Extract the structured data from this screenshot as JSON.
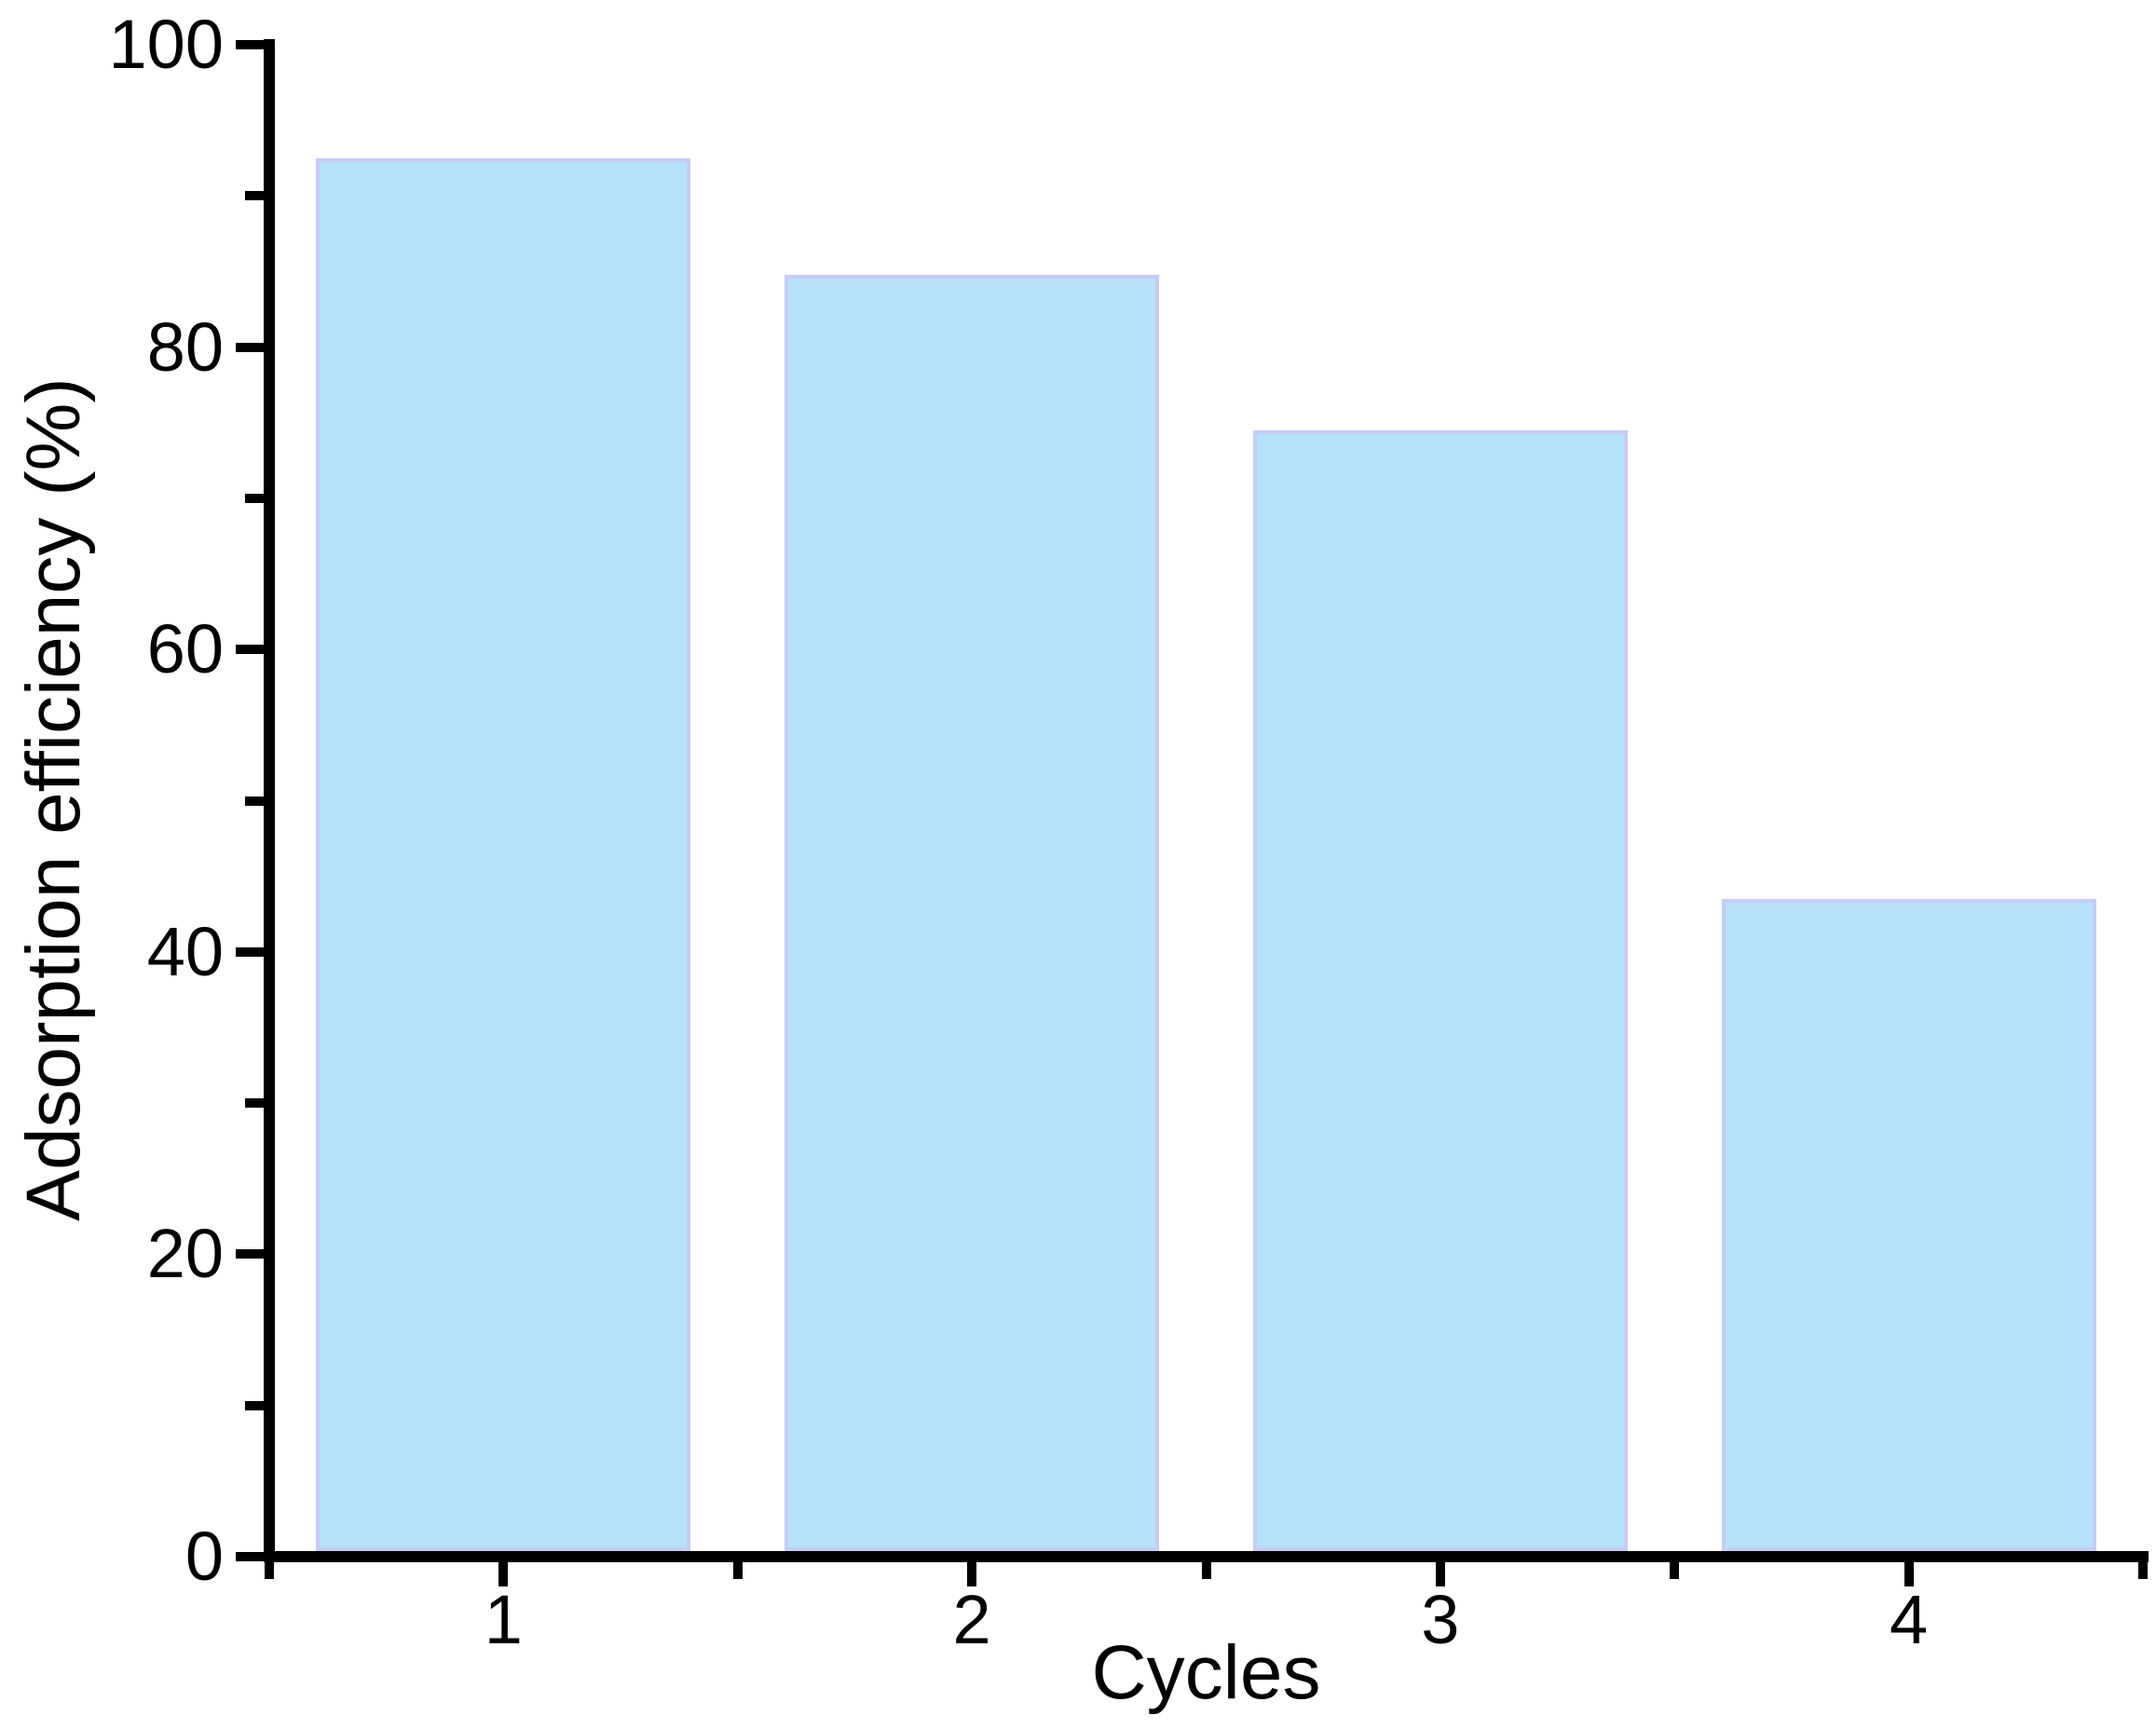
{
  "chart_data": {
    "type": "bar",
    "title": "",
    "categories": [
      "1",
      "2",
      "3",
      "4"
    ],
    "values": [
      92.5,
      84.8,
      74.5,
      43.5
    ],
    "xlabel": "Cycles",
    "ylabel": "Adsorption efficiency (%)",
    "ylim": [
      0,
      100
    ],
    "ytick_major_step": 20,
    "ytick_minor_step": 10,
    "ytick_labels": [
      "0",
      "20",
      "40",
      "60",
      "80",
      "100"
    ],
    "xtick_labels": [
      "1",
      "2",
      "3",
      "4"
    ],
    "grid": false,
    "legend": null,
    "bar_width_fraction": 0.8,
    "colors": {
      "bar_fill": "#b6e3fc",
      "bar_border": "#c7cbf5",
      "axis": "#000000",
      "text": "#000000",
      "background": "#ffffff"
    }
  }
}
